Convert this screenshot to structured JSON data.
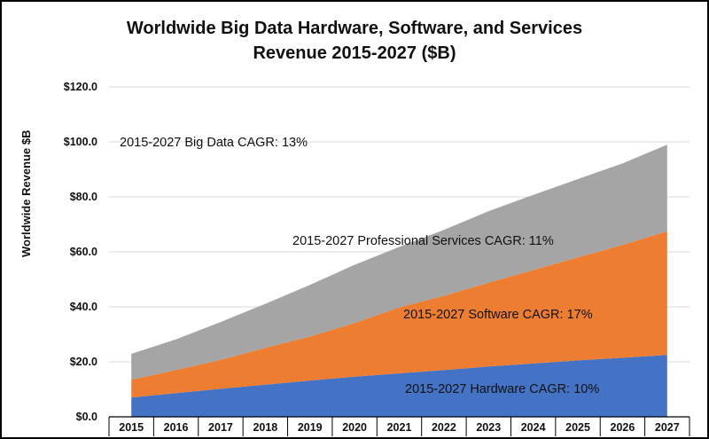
{
  "chart_data": {
    "type": "area",
    "stacked": true,
    "title_line1": "Worldwide Big Data Hardware, Software, and Services",
    "title_line2": "Revenue 2015-2027 ($B)",
    "ylabel": "Worldwide Revenue $B",
    "xlabel": "",
    "ylim": [
      0,
      120
    ],
    "yticks": [
      "$0.0",
      "$20.0",
      "$40.0",
      "$60.0",
      "$80.0",
      "$100.0",
      "$120.0"
    ],
    "categories": [
      "2015",
      "2016",
      "2017",
      "2018",
      "2019",
      "2020",
      "2021",
      "2022",
      "2023",
      "2024",
      "2025",
      "2026",
      "2027"
    ],
    "series": [
      {
        "name": "Hardware",
        "color": "#4472C4",
        "values": [
          7.0,
          8.6,
          10.2,
          11.7,
          13.2,
          14.6,
          15.8,
          17.0,
          18.3,
          19.4,
          20.5,
          21.5,
          22.5
        ]
      },
      {
        "name": "Software",
        "color": "#ED7D31",
        "values": [
          6.5,
          8.4,
          10.5,
          13.4,
          16.0,
          19.5,
          24.0,
          27.0,
          30.5,
          34.0,
          37.5,
          41.0,
          45.0
        ]
      },
      {
        "name": "Professional Services",
        "color": "#A5A5A5",
        "values": [
          9.4,
          11.2,
          13.8,
          16.0,
          18.8,
          21.2,
          22.0,
          24.0,
          26.0,
          27.3,
          28.5,
          29.7,
          31.5
        ]
      }
    ],
    "annotations": [
      {
        "text": "2015-2027 Big Data CAGR: 13%"
      },
      {
        "text": "2015-2027 Professional Services CAGR: 11%"
      },
      {
        "text": "2015-2027 Software CAGR: 17%"
      },
      {
        "text": "2015-2027 Hardware CAGR: 10%"
      }
    ]
  }
}
